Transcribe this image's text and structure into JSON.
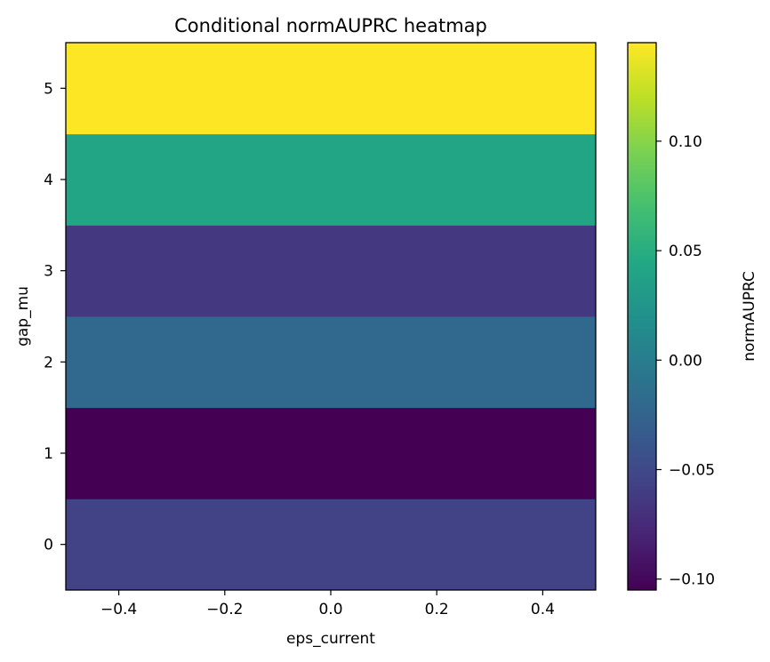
{
  "chart_data": {
    "type": "heatmap",
    "title": "Conditional normAUPRC heatmap",
    "xlabel": "eps_current",
    "ylabel": "gap_mu",
    "colorbar_label": "normAUPRC",
    "colormap": "viridis",
    "x_range": [
      -0.5,
      0.5
    ],
    "x_ticks": [
      -0.4,
      -0.2,
      0.0,
      0.2,
      0.4
    ],
    "x_tick_labels": [
      "−0.4",
      "−0.2",
      "0.0",
      "0.2",
      "0.4"
    ],
    "y_categories": [
      0,
      1,
      2,
      3,
      4,
      5
    ],
    "y_tick_labels": [
      "0",
      "1",
      "2",
      "3",
      "4",
      "5"
    ],
    "values": [
      -0.056,
      -0.105,
      -0.021,
      -0.064,
      0.042,
      0.145
    ],
    "color_range": [
      -0.105,
      0.145
    ],
    "colorbar_ticks": [
      -0.1,
      -0.05,
      0.0,
      0.05,
      0.1
    ],
    "colorbar_tick_labels": [
      "−0.10",
      "−0.05",
      "0.00",
      "0.05",
      "0.10"
    ]
  }
}
